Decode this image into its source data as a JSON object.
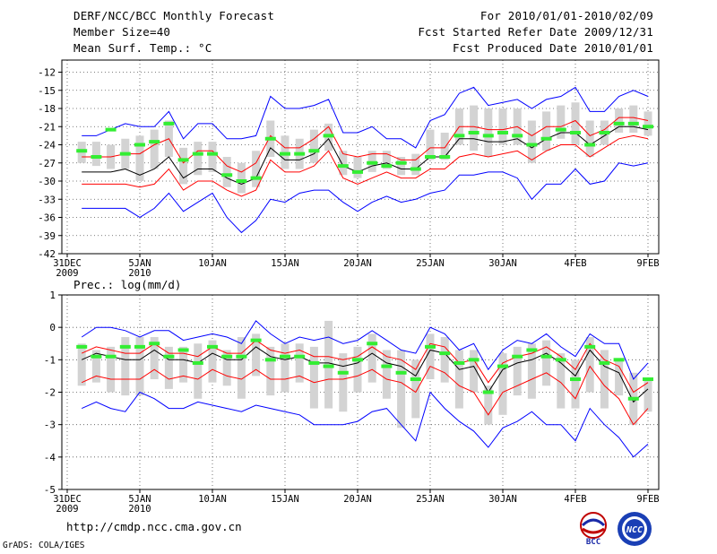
{
  "header": {
    "title": "DERF/NCC/BCC Monthly Forecast",
    "member": "Member Size=40",
    "variable": "Mean Surf. Temp.: °C",
    "period": "For 2010/01/01-2010/02/09",
    "started": "Fcst Started Refer Date 2009/12/31",
    "produced": "Fcst Produced Date 2010/01/01"
  },
  "footer": {
    "url": "http://cmdp.ncc.cma.gov.cn",
    "grads": "GrADS: COLA/IGES",
    "logo_bcc": "BCC",
    "logo_ncc": "NCC"
  },
  "colors": {
    "envelope": "#0000ff",
    "spread": "#ff0000",
    "mean": "#000000",
    "box": "#d3d3d3",
    "observed": "#33ee33"
  },
  "chart_data": [
    {
      "type": "line",
      "name": "temperature",
      "title": "Mean Surf. Temp.: °C",
      "ylim": [
        -42,
        -10
      ],
      "yticks": [
        -42,
        -39,
        -36,
        -33,
        -30,
        -27,
        -24,
        -21,
        -18,
        -15,
        -12
      ],
      "xticks": [
        {
          "day": 0,
          "label": "31DEC",
          "sub": "2009"
        },
        {
          "day": 5,
          "label": "5JAN",
          "sub": "2010"
        },
        {
          "day": 10,
          "label": "10JAN"
        },
        {
          "day": 15,
          "label": "15JAN"
        },
        {
          "day": 20,
          "label": "20JAN"
        },
        {
          "day": 25,
          "label": "25JAN"
        },
        {
          "day": 30,
          "label": "30JAN"
        },
        {
          "day": 35,
          "label": "4FEB"
        },
        {
          "day": 40,
          "label": "9FEB"
        }
      ],
      "days": [
        1,
        2,
        3,
        4,
        5,
        6,
        7,
        8,
        9,
        10,
        11,
        12,
        13,
        14,
        15,
        16,
        17,
        18,
        19,
        20,
        21,
        22,
        23,
        24,
        25,
        26,
        27,
        28,
        29,
        30,
        31,
        32,
        33,
        34,
        35,
        36,
        37,
        38,
        39,
        40
      ],
      "series": [
        {
          "name": "max",
          "color": "#0000ff",
          "values": [
            -22.5,
            -22.5,
            -21.5,
            -20.5,
            -21,
            -21,
            -18.5,
            -23,
            -20.5,
            -20.5,
            -23,
            -23,
            -22.5,
            -16,
            -18,
            -18,
            -17.5,
            -16.5,
            -22,
            -22,
            -21,
            -23,
            -23,
            -24.5,
            -20,
            -19,
            -15.5,
            -14.5,
            -17.5,
            -17,
            -16.5,
            -18,
            -16.5,
            -16,
            -14.5,
            -18.5,
            -18.5,
            -16,
            -15,
            -16
          ]
        },
        {
          "name": "upper",
          "color": "#ff0000",
          "values": [
            -26,
            -26,
            -26,
            -25.5,
            -25.5,
            -24,
            -23,
            -27,
            -25,
            -25,
            -27.5,
            -28.5,
            -27,
            -22.5,
            -24.5,
            -24.5,
            -23,
            -21,
            -25.5,
            -26,
            -25.5,
            -25.5,
            -26.5,
            -26.5,
            -24.5,
            -24.5,
            -21,
            -21,
            -21.5,
            -21.5,
            -21,
            -22.5,
            -21,
            -21,
            -20,
            -22.5,
            -21.5,
            -19.5,
            -19.5,
            -20
          ]
        },
        {
          "name": "mean",
          "color": "#000000",
          "values": [
            -28.5,
            -28.5,
            -28.5,
            -28,
            -29,
            -28,
            -26,
            -29.5,
            -28,
            -28,
            -29.5,
            -30.5,
            -29.5,
            -24.5,
            -26.5,
            -26.5,
            -25.5,
            -23,
            -27.5,
            -28.5,
            -27.5,
            -27,
            -28,
            -28,
            -26,
            -26,
            -23,
            -23,
            -23.5,
            -23.5,
            -23,
            -24.5,
            -23,
            -22,
            -22,
            -24,
            -22.5,
            -21,
            -21,
            -21.5
          ]
        },
        {
          "name": "lower",
          "color": "#ff0000",
          "values": [
            -30.5,
            -30.5,
            -30.5,
            -30.5,
            -31,
            -30.5,
            -28,
            -31.5,
            -30,
            -30,
            -31.5,
            -32.5,
            -31.5,
            -26.5,
            -28.5,
            -28.5,
            -27.5,
            -25,
            -29.5,
            -30.5,
            -29.5,
            -28.5,
            -29.5,
            -29.5,
            -28,
            -28,
            -26,
            -25.5,
            -26,
            -25.5,
            -25,
            -26.5,
            -25,
            -24,
            -24,
            -26,
            -24.5,
            -23,
            -22.5,
            -23
          ]
        },
        {
          "name": "min",
          "color": "#0000ff",
          "values": [
            -34.5,
            -34.5,
            -34.5,
            -34.5,
            -36,
            -34.5,
            -32,
            -35,
            -33.5,
            -32,
            -36,
            -38.5,
            -36.5,
            -33,
            -33.5,
            -32,
            -31.5,
            -31.5,
            -33.5,
            -35,
            -33.5,
            -32.5,
            -33.5,
            -33,
            -32,
            -31.5,
            -29,
            -29,
            -28.5,
            -28.5,
            -29.5,
            -33,
            -30.5,
            -30.5,
            -28,
            -30.5,
            -30,
            -27,
            -27.5,
            -27
          ]
        }
      ],
      "box_low": [
        -27,
        -27.5,
        -28,
        -28,
        -30,
        -28,
        -26,
        -30.5,
        -29,
        -28.5,
        -31,
        -32,
        -31,
        -26,
        -28,
        -28,
        -27,
        -25,
        -29,
        -29.5,
        -28.5,
        -28,
        -29,
        -29,
        -26.5,
        -26.5,
        -24,
        -25,
        -26,
        -24,
        -24,
        -27,
        -25,
        -23,
        -24,
        -26,
        -24,
        -22,
        -22,
        -22.5
      ],
      "box_high": [
        -23.5,
        -23.5,
        -24,
        -23,
        -22.5,
        -21.5,
        -20,
        -24.5,
        -23.5,
        -23.5,
        -26,
        -27,
        -25,
        -20,
        -22.5,
        -23,
        -21.5,
        -20.5,
        -25,
        -26,
        -25,
        -25,
        -26,
        -25.5,
        -21.5,
        -22,
        -18,
        -17.5,
        -18,
        -18,
        -18,
        -20,
        -18.5,
        -17.5,
        -17,
        -20,
        -20,
        -18,
        -17.5,
        -18.5
      ],
      "observed": [
        -25,
        -26,
        -21.5,
        -25.5,
        -24,
        -23.5,
        -20.5,
        -26.5,
        -25.5,
        -25.5,
        -29,
        -30,
        -29.5,
        -23,
        -25.5,
        -25.5,
        -25,
        -22.5,
        -27.5,
        -28.5,
        -27,
        -27.5,
        -27,
        -28,
        -26,
        -26,
        -22.5,
        -22,
        -22.5,
        -22,
        -22.5,
        -24,
        -23,
        -21.5,
        -22,
        -24,
        -22,
        -20.5,
        -20.5,
        -21
      ]
    },
    {
      "type": "line",
      "name": "precipitation",
      "title": "Prec.: log(mm/d)",
      "ylim": [
        -5,
        1
      ],
      "yticks": [
        -5,
        -4,
        -3,
        -2,
        -1,
        0,
        1
      ],
      "xticks": [
        {
          "day": 0,
          "label": "31DEC",
          "sub": "2009"
        },
        {
          "day": 5,
          "label": "5JAN",
          "sub": "2010"
        },
        {
          "day": 10,
          "label": "10JAN"
        },
        {
          "day": 15,
          "label": "15JAN"
        },
        {
          "day": 20,
          "label": "20JAN"
        },
        {
          "day": 25,
          "label": "25JAN"
        },
        {
          "day": 30,
          "label": "30JAN"
        },
        {
          "day": 35,
          "label": "4FEB"
        },
        {
          "day": 40,
          "label": "9FEB"
        }
      ],
      "days": [
        1,
        2,
        3,
        4,
        5,
        6,
        7,
        8,
        9,
        10,
        11,
        12,
        13,
        14,
        15,
        16,
        17,
        18,
        19,
        20,
        21,
        22,
        23,
        24,
        25,
        26,
        27,
        28,
        29,
        30,
        31,
        32,
        33,
        34,
        35,
        36,
        37,
        38,
        39,
        40
      ],
      "series": [
        {
          "name": "max",
          "color": "#0000ff",
          "values": [
            -0.3,
            0,
            0,
            -0.1,
            -0.3,
            -0.1,
            -0.1,
            -0.4,
            -0.3,
            -0.2,
            -0.3,
            -0.5,
            0.2,
            -0.2,
            -0.5,
            -0.3,
            -0.4,
            -0.3,
            -0.5,
            -0.4,
            -0.1,
            -0.4,
            -0.7,
            -0.8,
            0,
            -0.2,
            -0.7,
            -0.5,
            -1.3,
            -0.7,
            -0.4,
            -0.5,
            -0.2,
            -0.6,
            -0.9,
            -0.2,
            -0.5,
            -0.5,
            -1.6,
            -1.1
          ]
        },
        {
          "name": "upper",
          "color": "#ff0000",
          "values": [
            -0.8,
            -0.6,
            -0.7,
            -0.8,
            -0.8,
            -0.5,
            -0.8,
            -0.8,
            -0.9,
            -0.6,
            -0.8,
            -0.8,
            -0.4,
            -0.7,
            -0.8,
            -0.7,
            -0.9,
            -0.9,
            -1.0,
            -0.9,
            -0.6,
            -0.9,
            -1.0,
            -1.3,
            -0.5,
            -0.6,
            -1.1,
            -1.0,
            -1.7,
            -1.1,
            -0.9,
            -0.8,
            -0.6,
            -0.9,
            -1.3,
            -0.5,
            -1.0,
            -1.2,
            -2.0,
            -1.7
          ]
        },
        {
          "name": "mean",
          "color": "#000000",
          "values": [
            -1.0,
            -0.8,
            -0.9,
            -1.0,
            -1.0,
            -0.7,
            -1.0,
            -1.0,
            -1.1,
            -0.8,
            -1.0,
            -1.0,
            -0.6,
            -0.9,
            -1.0,
            -0.9,
            -1.1,
            -1.1,
            -1.2,
            -1.1,
            -0.8,
            -1.1,
            -1.2,
            -1.5,
            -0.7,
            -0.8,
            -1.3,
            -1.2,
            -2.0,
            -1.3,
            -1.1,
            -1.0,
            -0.8,
            -1.1,
            -1.5,
            -0.7,
            -1.2,
            -1.4,
            -2.3,
            -1.9
          ]
        },
        {
          "name": "lower",
          "color": "#ff0000",
          "values": [
            -1.7,
            -1.5,
            -1.6,
            -1.6,
            -1.6,
            -1.3,
            -1.6,
            -1.5,
            -1.6,
            -1.3,
            -1.5,
            -1.6,
            -1.3,
            -1.6,
            -1.6,
            -1.5,
            -1.7,
            -1.6,
            -1.6,
            -1.5,
            -1.3,
            -1.6,
            -1.7,
            -2.0,
            -1.2,
            -1.4,
            -1.8,
            -2.0,
            -2.7,
            -2.0,
            -1.8,
            -1.6,
            -1.4,
            -1.7,
            -2.2,
            -1.2,
            -1.8,
            -2.2,
            -3.0,
            -2.5
          ]
        },
        {
          "name": "min",
          "color": "#0000ff",
          "values": [
            -2.5,
            -2.3,
            -2.5,
            -2.6,
            -2.0,
            -2.2,
            -2.5,
            -2.5,
            -2.3,
            -2.4,
            -2.5,
            -2.6,
            -2.4,
            -2.5,
            -2.6,
            -2.7,
            -3.0,
            -3.0,
            -3.0,
            -2.9,
            -2.6,
            -2.5,
            -3.0,
            -3.5,
            -2.0,
            -2.5,
            -2.9,
            -3.2,
            -3.7,
            -3.1,
            -2.9,
            -2.6,
            -3.0,
            -3.0,
            -3.5,
            -2.5,
            -3.0,
            -3.4,
            -4.0,
            -3.6
          ]
        },
        {
          "name": "observed_mean",
          "color": "#000000",
          "values": []
        }
      ],
      "box_low": [
        -1.8,
        -1.7,
        -2.0,
        -2.1,
        -2.1,
        -1.6,
        -1.9,
        -1.7,
        -2.2,
        -1.7,
        -1.8,
        -2.2,
        -1.5,
        -2.1,
        -2.0,
        -1.7,
        -2.5,
        -2.5,
        -2.6,
        -2.0,
        -1.7,
        -2.2,
        -3.1,
        -2.8,
        -1.6,
        -1.7,
        -2.5,
        -2.0,
        -3.0,
        -2.7,
        -2.1,
        -2.2,
        -1.8,
        -2.5,
        -2.5,
        -2.0,
        -2.5,
        -2.1,
        -3.0,
        -2.6
      ],
      "box_high": [
        -0.5,
        -0.7,
        -0.6,
        -0.3,
        -0.3,
        -0.3,
        -0.6,
        -0.6,
        -0.5,
        -0.4,
        -0.7,
        -0.3,
        -0.2,
        -0.6,
        -0.5,
        -0.5,
        -0.6,
        0.2,
        -0.8,
        -0.6,
        -0.2,
        -0.7,
        -0.7,
        -1.0,
        -0.2,
        -0.3,
        -0.7,
        -0.7,
        -1.8,
        -0.8,
        -0.6,
        -0.5,
        -0.4,
        -0.8,
        -1.0,
        -0.3,
        -0.7,
        -1.0,
        -1.4,
        -1.6
      ],
      "observed": [
        -0.6,
        -0.9,
        -0.9,
        -0.6,
        -0.6,
        -0.5,
        -0.9,
        -0.7,
        -1.1,
        -0.6,
        -0.9,
        -0.9,
        -0.4,
        -1.0,
        -0.9,
        -0.9,
        -1.1,
        -1.2,
        -1.4,
        -1.0,
        -0.5,
        -1.2,
        -1.4,
        -1.6,
        -0.6,
        -0.8,
        -1.1,
        -1.0,
        -2.0,
        -1.2,
        -0.9,
        -0.7,
        -0.9,
        -1.0,
        -1.6,
        -0.6,
        -1.1,
        -1.0,
        -2.2,
        -1.6
      ]
    }
  ]
}
